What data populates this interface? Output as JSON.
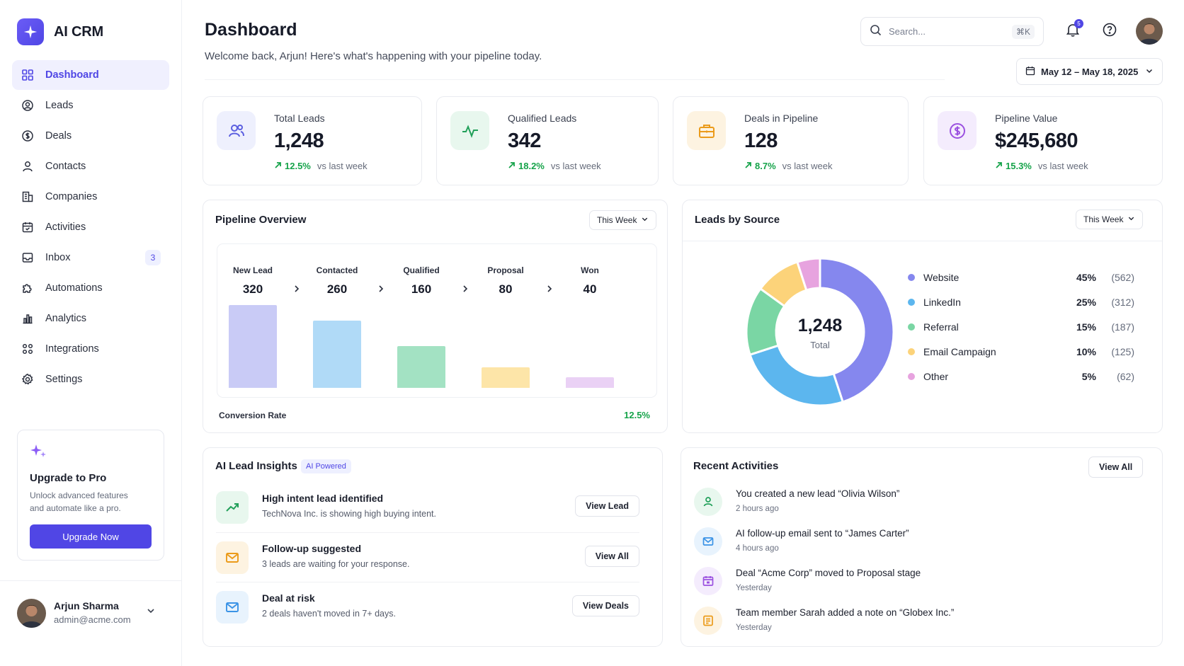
{
  "app": {
    "name": "AI CRM"
  },
  "sidebar": {
    "items": [
      {
        "label": "Dashboard",
        "icon": "grid-icon"
      },
      {
        "label": "Leads",
        "icon": "user-circle-icon"
      },
      {
        "label": "Deals",
        "icon": "dollar-circle-icon"
      },
      {
        "label": "Contacts",
        "icon": "user-icon"
      },
      {
        "label": "Companies",
        "icon": "building-icon"
      },
      {
        "label": "Activities",
        "icon": "calendar-icon"
      },
      {
        "label": "Inbox",
        "icon": "inbox-icon",
        "badge": "3"
      },
      {
        "label": "Automations",
        "icon": "puzzle-icon"
      },
      {
        "label": "Analytics",
        "icon": "bar-chart-icon"
      },
      {
        "label": "Integrations",
        "icon": "integrations-icon"
      },
      {
        "label": "Settings",
        "icon": "gear-icon"
      }
    ],
    "upgrade": {
      "title": "Upgrade to Pro",
      "desc_line1": "Unlock advanced features",
      "desc_line2": "and automate like a pro.",
      "button": "Upgrade Now"
    },
    "user": {
      "name": "Arjun Sharma",
      "email": "admin@acme.com"
    }
  },
  "header": {
    "title": "Dashboard",
    "subtitle": "Welcome back, Arjun! Here's what's happening with your pipeline today.",
    "search_placeholder": "Search...",
    "search_shortcut": "⌘K",
    "notification_count": "5",
    "date_range": "May 12 – May 18, 2025"
  },
  "stats": [
    {
      "label": "Total Leads",
      "value": "1,248",
      "pct": "12.5%",
      "suffix": "vs last week",
      "icon": "users-icon"
    },
    {
      "label": "Qualified Leads",
      "value": "342",
      "pct": "18.2%",
      "suffix": "vs last week",
      "icon": "pulse-icon"
    },
    {
      "label": "Deals in Pipeline",
      "value": "128",
      "pct": "8.7%",
      "suffix": "vs last week",
      "icon": "briefcase-icon"
    },
    {
      "label": "Pipeline Value",
      "value": "$245,680",
      "pct": "15.3%",
      "suffix": "vs last week",
      "icon": "dollar-icon"
    }
  ],
  "pipeline": {
    "title": "Pipeline Overview",
    "filter": "This Week",
    "conversion_label": "Conversion Rate",
    "conversion_value": "12.5%"
  },
  "leads_source": {
    "title": "Leads by Source",
    "filter": "This Week",
    "total_value": "1,248",
    "total_label": "Total"
  },
  "insights": {
    "title": "AI Lead Insights",
    "badge": "AI Powered",
    "items": [
      {
        "title": "High intent lead identified",
        "desc": "TechNova Inc. is showing high buying intent.",
        "button": "View Lead",
        "icon": "trend-up-icon"
      },
      {
        "title": "Follow-up suggested",
        "desc": "3 leads are waiting for your response.",
        "button": "View All",
        "icon": "mail-icon"
      },
      {
        "title": "Deal at risk",
        "desc": "2 deals haven't moved in 7+ days.",
        "button": "View Deals",
        "icon": "mail-alert-icon"
      }
    ]
  },
  "activities": {
    "title": "Recent Activities",
    "button": "View All",
    "items": [
      {
        "title": "You created a new lead “Olivia Wilson”",
        "time": "2 hours ago",
        "icon": "user-add-icon"
      },
      {
        "title": "AI follow-up email sent to “James Carter”",
        "time": "4 hours ago",
        "icon": "mail-icon"
      },
      {
        "title": "Deal “Acme Corp” moved to Proposal stage",
        "time": "Yesterday",
        "icon": "calendar-icon"
      },
      {
        "title": "Team member Sarah added a note on “Globex Inc.”",
        "time": "Yesterday",
        "icon": "note-icon"
      }
    ]
  },
  "chart_data": [
    {
      "type": "bar",
      "categories": [
        "New Lead",
        "Contacted",
        "Qualified",
        "Proposal",
        "Won"
      ],
      "values": [
        320,
        260,
        160,
        80,
        40
      ],
      "value_labels": [
        "320",
        "260",
        "160",
        "80",
        "40"
      ],
      "colors": [
        "#c9cbf6",
        "#b0daf7",
        "#a3e2c3",
        "#fde5a8",
        "#ead1f5"
      ],
      "ylim": [
        0,
        320
      ],
      "grid": false
    },
    {
      "type": "pie",
      "donut": true,
      "categories": [
        "Website",
        "LinkedIn",
        "Referral",
        "Email Campaign",
        "Other"
      ],
      "values": [
        45,
        25,
        15,
        10,
        5
      ],
      "pct_labels": [
        "45%",
        "25%",
        "15%",
        "10%",
        "5%"
      ],
      "counts": [
        "(562)",
        "(312)",
        "(187)",
        "(125)",
        "(62)"
      ],
      "colors": [
        "#8587ee",
        "#5cb6ee",
        "#7ad6a4",
        "#fcd37a",
        "#e7a3df"
      ]
    }
  ]
}
